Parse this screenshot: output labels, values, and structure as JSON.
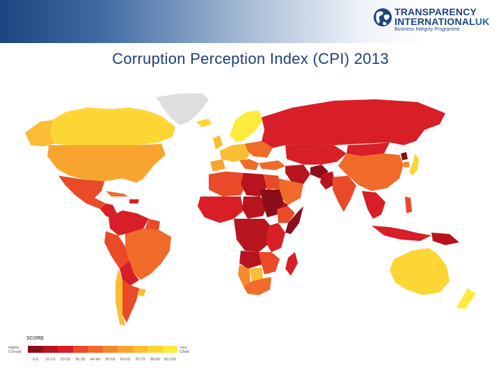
{
  "header": {
    "logo": {
      "line1": "TRANSPARENCY",
      "line2_main": "INTERNATIONAL",
      "line2_suffix": "UK",
      "tagline": "Business Integrity Programme",
      "brand_color": "#1d4480"
    }
  },
  "title": "Corruption Perception Index (CPI) 2013",
  "map": {
    "type": "choropleth world map",
    "palette": {
      "score_0_9": "#8c0d1a",
      "score_10_19": "#b8141e",
      "score_20_29": "#d81e26",
      "score_30_39": "#e94a28",
      "score_40_49": "#f06a2a",
      "score_50_59": "#f58a2c",
      "score_60_69": "#f8a530",
      "score_70_79": "#fbbd33",
      "score_80_89": "#fcd635",
      "score_90_100": "#fdeb3c",
      "no_data": "#dedede",
      "ocean": "#ffffff"
    }
  },
  "legend": {
    "title": "SCORE",
    "low_label": "Highly Corrupt",
    "high_label": "Very Clean",
    "ranges": [
      "0-9",
      "10-19",
      "20-29",
      "30-39",
      "40-49",
      "50-59",
      "60-69",
      "70-79",
      "80-89",
      "90-100"
    ],
    "colors": [
      "#8c0d1a",
      "#b8141e",
      "#d81e26",
      "#e94a28",
      "#f06a2a",
      "#f58a2c",
      "#f8a530",
      "#fbbd33",
      "#fcd635",
      "#fdeb3c"
    ]
  }
}
